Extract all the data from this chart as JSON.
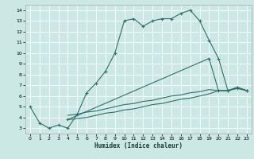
{
  "xlabel": "Humidex (Indice chaleur)",
  "bg_color": "#cce8e4",
  "line_color": "#2d706a",
  "grid_color": "#b0d8d2",
  "xlim": [
    -0.5,
    23.5
  ],
  "ylim": [
    2.5,
    14.5
  ],
  "xticks": [
    0,
    1,
    2,
    3,
    4,
    5,
    6,
    7,
    8,
    9,
    10,
    11,
    12,
    13,
    14,
    15,
    16,
    17,
    18,
    19,
    20,
    21,
    22,
    23
  ],
  "yticks": [
    3,
    4,
    5,
    6,
    7,
    8,
    9,
    10,
    11,
    12,
    13,
    14
  ],
  "line1_x": [
    0,
    1,
    2,
    3,
    4,
    5,
    6,
    7,
    8,
    9,
    10,
    11,
    12,
    13,
    14,
    15,
    16,
    17,
    18,
    19,
    20,
    21,
    22,
    23
  ],
  "line1_y": [
    5.0,
    3.5,
    3.0,
    3.3,
    3.0,
    4.3,
    6.3,
    7.2,
    8.3,
    10.0,
    13.0,
    13.2,
    12.5,
    13.0,
    13.2,
    13.2,
    13.7,
    14.0,
    13.0,
    11.2,
    9.5,
    6.5,
    6.7,
    6.5
  ],
  "line2_x": [
    4,
    5,
    6,
    7,
    8,
    9,
    10,
    11,
    12,
    13,
    14,
    15,
    16,
    17,
    18,
    19,
    20,
    21,
    22,
    23
  ],
  "line2_y": [
    4.2,
    4.3,
    4.5,
    4.6,
    4.8,
    5.0,
    5.2,
    5.3,
    5.5,
    5.6,
    5.8,
    6.0,
    6.1,
    6.3,
    6.4,
    6.6,
    6.5,
    6.5,
    6.8,
    6.5
  ],
  "line3_x": [
    4,
    5,
    6,
    7,
    8,
    9,
    10,
    11,
    12,
    13,
    14,
    15,
    16,
    17,
    18,
    19,
    20,
    21,
    22,
    23
  ],
  "line3_y": [
    3.8,
    3.9,
    4.0,
    4.2,
    4.4,
    4.5,
    4.7,
    4.8,
    5.0,
    5.2,
    5.3,
    5.5,
    5.7,
    5.8,
    6.0,
    6.2,
    6.5,
    6.5,
    6.8,
    6.5
  ],
  "line4_x": [
    4,
    19,
    20,
    21,
    22,
    23
  ],
  "line4_y": [
    3.8,
    9.5,
    6.5,
    6.5,
    6.8,
    6.5
  ]
}
